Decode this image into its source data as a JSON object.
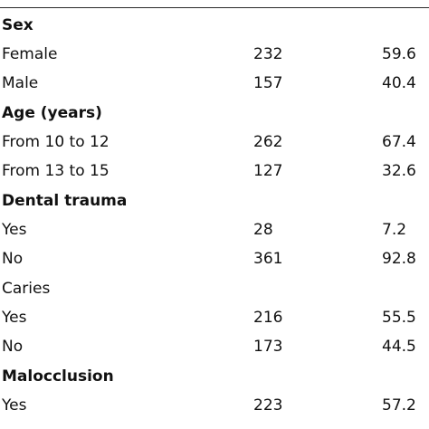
{
  "rows": [
    {
      "label": "Sex",
      "n": "",
      "pct": "",
      "header": true
    },
    {
      "label": "Female",
      "n": "232",
      "pct": "59.6",
      "header": false
    },
    {
      "label": "Male",
      "n": "157",
      "pct": "40.4",
      "header": false
    },
    {
      "label": "Age (years)",
      "n": "",
      "pct": "",
      "header": true
    },
    {
      "label": "From 10 to 12",
      "n": "262",
      "pct": "67.4",
      "header": false
    },
    {
      "label": "From 13 to 15",
      "n": "127",
      "pct": "32.6",
      "header": false
    },
    {
      "label": "Dental trauma",
      "n": "",
      "pct": "",
      "header": true
    },
    {
      "label": "Yes",
      "n": "28",
      "pct": "7.2",
      "header": false
    },
    {
      "label": "No",
      "n": "361",
      "pct": "92.8",
      "header": false
    },
    {
      "label": "Caries",
      "n": "",
      "pct": "",
      "header": false
    },
    {
      "label": "Yes",
      "n": "216",
      "pct": "55.5",
      "header": false
    },
    {
      "label": "No",
      "n": "173",
      "pct": "44.5",
      "header": false
    },
    {
      "label": "Malocclusion",
      "n": "",
      "pct": "",
      "header": true
    },
    {
      "label": "Yes",
      "n": "223",
      "pct": "57.2",
      "header": false
    }
  ]
}
